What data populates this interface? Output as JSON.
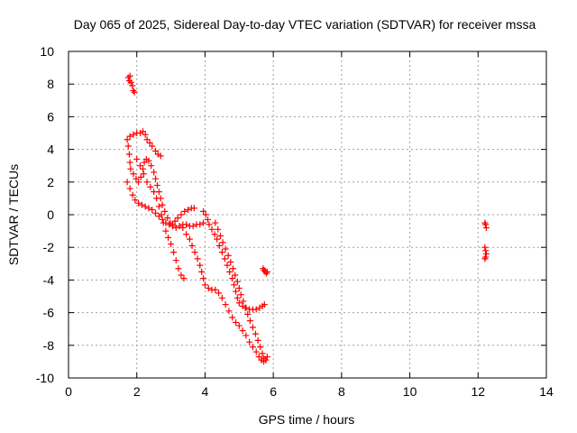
{
  "chart_data": {
    "type": "scatter",
    "title": "Day 065 of 2025, Sidereal Day-to-day VTEC variation (SDTVAR) for receiver mssa",
    "xlabel": "GPS time / hours",
    "ylabel": "SDTVAR / TECUs",
    "xlim": [
      0,
      14
    ],
    "ylim": [
      -10,
      10
    ],
    "xticks": [
      0,
      2,
      4,
      6,
      8,
      10,
      12,
      14
    ],
    "yticks": [
      -10,
      -8,
      -6,
      -4,
      -2,
      0,
      2,
      4,
      6,
      8,
      10
    ],
    "grid": true,
    "marker": "+",
    "series_color": "#ff0000",
    "series": [
      {
        "name": "SDTVAR",
        "points": [
          [
            1.75,
            8.4
          ],
          [
            1.78,
            8.2
          ],
          [
            1.8,
            8.5
          ],
          [
            1.83,
            8.1
          ],
          [
            1.87,
            7.9
          ],
          [
            1.9,
            7.6
          ],
          [
            1.93,
            7.5
          ],
          [
            1.72,
            4.6
          ],
          [
            1.8,
            4.8
          ],
          [
            1.9,
            4.9
          ],
          [
            2.0,
            5.0
          ],
          [
            2.1,
            5.0
          ],
          [
            2.18,
            5.1
          ],
          [
            2.25,
            4.9
          ],
          [
            2.3,
            4.6
          ],
          [
            2.38,
            4.4
          ],
          [
            2.45,
            4.2
          ],
          [
            2.55,
            3.9
          ],
          [
            2.62,
            3.7
          ],
          [
            2.7,
            3.6
          ],
          [
            1.75,
            4.2
          ],
          [
            1.78,
            3.7
          ],
          [
            1.8,
            3.2
          ],
          [
            1.82,
            2.8
          ],
          [
            1.9,
            2.5
          ],
          [
            1.98,
            2.2
          ],
          [
            2.05,
            2.0
          ],
          [
            2.12,
            2.3
          ],
          [
            2.18,
            2.8
          ],
          [
            2.22,
            3.2
          ],
          [
            2.28,
            3.4
          ],
          [
            2.35,
            3.3
          ],
          [
            2.42,
            3.0
          ],
          [
            2.5,
            2.6
          ],
          [
            2.55,
            2.2
          ],
          [
            2.6,
            1.8
          ],
          [
            2.65,
            1.4
          ],
          [
            2.7,
            1.0
          ],
          [
            2.75,
            0.6
          ],
          [
            2.82,
            0.2
          ],
          [
            2.9,
            -0.2
          ],
          [
            2.98,
            -0.5
          ],
          [
            3.05,
            -0.6
          ],
          [
            3.12,
            -0.4
          ],
          [
            3.2,
            -0.2
          ],
          [
            3.3,
            0.0
          ],
          [
            3.4,
            0.2
          ],
          [
            3.5,
            0.3
          ],
          [
            3.6,
            0.4
          ],
          [
            3.68,
            0.4
          ],
          [
            2.0,
            3.4
          ],
          [
            2.1,
            3.0
          ],
          [
            2.2,
            2.5
          ],
          [
            2.3,
            2.0
          ],
          [
            2.4,
            1.7
          ],
          [
            2.5,
            1.4
          ],
          [
            2.58,
            1.0
          ],
          [
            2.65,
            0.5
          ],
          [
            2.72,
            0.0
          ],
          [
            2.78,
            -0.5
          ],
          [
            2.85,
            -1.0
          ],
          [
            2.92,
            -1.4
          ],
          [
            3.0,
            -1.8
          ],
          [
            3.08,
            -2.3
          ],
          [
            3.15,
            -2.8
          ],
          [
            3.22,
            -3.3
          ],
          [
            3.3,
            -3.7
          ],
          [
            3.38,
            -3.9
          ],
          [
            1.72,
            2.0
          ],
          [
            1.8,
            1.6
          ],
          [
            1.88,
            1.2
          ],
          [
            1.95,
            0.9
          ],
          [
            2.05,
            0.7
          ],
          [
            2.15,
            0.6
          ],
          [
            2.25,
            0.5
          ],
          [
            2.35,
            0.4
          ],
          [
            2.45,
            0.3
          ],
          [
            2.55,
            0.1
          ],
          [
            2.65,
            -0.1
          ],
          [
            2.75,
            -0.3
          ],
          [
            2.85,
            -0.5
          ],
          [
            2.95,
            -0.6
          ],
          [
            3.05,
            -0.7
          ],
          [
            3.15,
            -0.8
          ],
          [
            3.25,
            -0.7
          ],
          [
            3.35,
            -0.6
          ],
          [
            3.45,
            -0.6
          ],
          [
            3.55,
            -0.7
          ],
          [
            3.65,
            -0.7
          ],
          [
            3.75,
            -0.6
          ],
          [
            3.85,
            -0.6
          ],
          [
            3.95,
            -0.5
          ],
          [
            3.95,
            0.2
          ],
          [
            4.02,
            0.0
          ],
          [
            4.08,
            -0.3
          ],
          [
            4.12,
            -0.6
          ],
          [
            4.2,
            -0.9
          ],
          [
            4.28,
            -1.2
          ],
          [
            4.35,
            -1.5
          ],
          [
            4.42,
            -1.9
          ],
          [
            4.5,
            -2.3
          ],
          [
            4.58,
            -2.7
          ],
          [
            4.65,
            -3.1
          ],
          [
            4.72,
            -3.5
          ],
          [
            4.8,
            -3.9
          ],
          [
            4.85,
            -4.3
          ],
          [
            4.9,
            -4.7
          ],
          [
            4.95,
            -5.1
          ],
          [
            5.0,
            -5.4
          ],
          [
            5.1,
            -5.6
          ],
          [
            5.2,
            -5.7
          ],
          [
            5.3,
            -5.8
          ],
          [
            5.4,
            -5.8
          ],
          [
            5.5,
            -5.8
          ],
          [
            5.6,
            -5.7
          ],
          [
            5.68,
            -5.6
          ],
          [
            5.74,
            -5.5
          ],
          [
            4.3,
            -0.5
          ],
          [
            4.38,
            -0.9
          ],
          [
            4.45,
            -1.3
          ],
          [
            4.52,
            -1.7
          ],
          [
            4.6,
            -2.1
          ],
          [
            4.68,
            -2.5
          ],
          [
            4.75,
            -2.9
          ],
          [
            4.82,
            -3.3
          ],
          [
            4.88,
            -3.7
          ],
          [
            4.95,
            -4.1
          ],
          [
            5.0,
            -4.5
          ],
          [
            5.05,
            -4.9
          ],
          [
            5.12,
            -5.3
          ],
          [
            5.18,
            -5.7
          ],
          [
            5.25,
            -6.1
          ],
          [
            5.32,
            -6.5
          ],
          [
            5.4,
            -6.9
          ],
          [
            5.48,
            -7.3
          ],
          [
            5.55,
            -7.7
          ],
          [
            5.62,
            -8.1
          ],
          [
            5.68,
            -8.5
          ],
          [
            5.72,
            -8.8
          ],
          [
            3.35,
            -0.8
          ],
          [
            3.45,
            -1.2
          ],
          [
            3.55,
            -1.5
          ],
          [
            3.62,
            -1.9
          ],
          [
            3.7,
            -2.3
          ],
          [
            3.78,
            -2.7
          ],
          [
            3.85,
            -3.1
          ],
          [
            3.9,
            -3.5
          ],
          [
            3.95,
            -3.9
          ],
          [
            4.0,
            -4.3
          ],
          [
            4.1,
            -4.5
          ],
          [
            4.2,
            -4.6
          ],
          [
            4.3,
            -4.6
          ],
          [
            4.4,
            -4.8
          ],
          [
            4.5,
            -5.1
          ],
          [
            4.6,
            -5.5
          ],
          [
            4.7,
            -5.9
          ],
          [
            4.8,
            -6.3
          ],
          [
            4.9,
            -6.6
          ],
          [
            5.0,
            -6.8
          ],
          [
            5.1,
            -7.1
          ],
          [
            5.2,
            -7.4
          ],
          [
            5.3,
            -7.8
          ],
          [
            5.4,
            -8.1
          ],
          [
            5.5,
            -8.4
          ],
          [
            5.58,
            -8.7
          ],
          [
            5.65,
            -8.9
          ],
          [
            5.72,
            -9.0
          ],
          [
            5.78,
            -8.9
          ],
          [
            5.82,
            -8.7
          ],
          [
            5.7,
            -3.3
          ],
          [
            5.73,
            -3.4
          ],
          [
            5.76,
            -3.5
          ],
          [
            5.8,
            -3.6
          ],
          [
            5.82,
            -3.5
          ],
          [
            12.2,
            -0.5
          ],
          [
            12.22,
            -0.6
          ],
          [
            12.24,
            -0.8
          ],
          [
            12.2,
            -2.0
          ],
          [
            12.22,
            -2.2
          ],
          [
            12.24,
            -2.4
          ],
          [
            12.22,
            -2.6
          ],
          [
            12.2,
            -2.7
          ]
        ]
      }
    ]
  }
}
